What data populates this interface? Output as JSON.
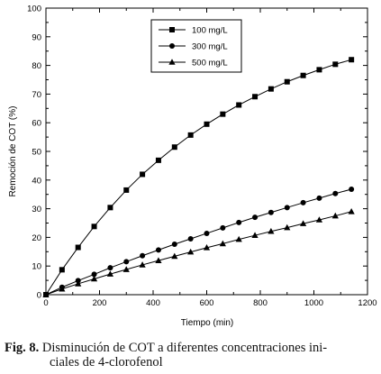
{
  "chart_data": {
    "type": "line",
    "xlabel": "Tiempo (min)",
    "ylabel": "Remoción de COT (%)",
    "xlim": [
      0,
      1200
    ],
    "ylim": [
      0,
      100
    ],
    "x_ticks": [
      "0",
      "200",
      "400",
      "600",
      "800",
      "1000",
      "1200"
    ],
    "y_ticks": [
      "0",
      "10",
      "20",
      "30",
      "40",
      "50",
      "60",
      "70",
      "80",
      "90",
      "100"
    ],
    "grid": false,
    "legend_position": "top-center",
    "series": [
      {
        "name": "100 mg/L",
        "marker": "square",
        "x": [
          0,
          60,
          120,
          180,
          240,
          300,
          360,
          420,
          480,
          540,
          600,
          660,
          720,
          780,
          840,
          900,
          960,
          1020,
          1080,
          1140
        ],
        "y": [
          0,
          8.7,
          16.5,
          23.8,
          30.4,
          36.5,
          42,
          46.9,
          51.5,
          55.7,
          59.5,
          63,
          66.2,
          69.1,
          71.8,
          74.3,
          76.5,
          78.5,
          80.4,
          82
        ]
      },
      {
        "name": "300 mg/L",
        "marker": "circle",
        "x": [
          0,
          60,
          120,
          180,
          240,
          300,
          360,
          420,
          480,
          540,
          600,
          660,
          720,
          780,
          840,
          900,
          960,
          1020,
          1080,
          1140
        ],
        "y": [
          0,
          2.6,
          4.9,
          7.1,
          9.4,
          11.5,
          13.6,
          15.6,
          17.6,
          19.5,
          21.4,
          23.3,
          25.2,
          27,
          28.7,
          30.4,
          32.1,
          33.7,
          35.3,
          36.8
        ]
      },
      {
        "name": "500 mg/L",
        "marker": "triangle",
        "x": [
          0,
          60,
          120,
          180,
          240,
          300,
          360,
          420,
          480,
          540,
          600,
          660,
          720,
          780,
          840,
          900,
          960,
          1020,
          1080,
          1140
        ],
        "y": [
          0,
          2,
          3.8,
          5.5,
          7.2,
          8.8,
          10.4,
          11.9,
          13.4,
          14.9,
          16.4,
          17.8,
          19.3,
          20.7,
          22.1,
          23.4,
          24.8,
          26.1,
          27.5,
          29
        ]
      }
    ]
  },
  "caption": {
    "label": "Fig. 8.",
    "text_line1": "Disminución de COT a diferentes concentraciones ini-",
    "text_line2": "ciales de 4-clorofenol"
  }
}
